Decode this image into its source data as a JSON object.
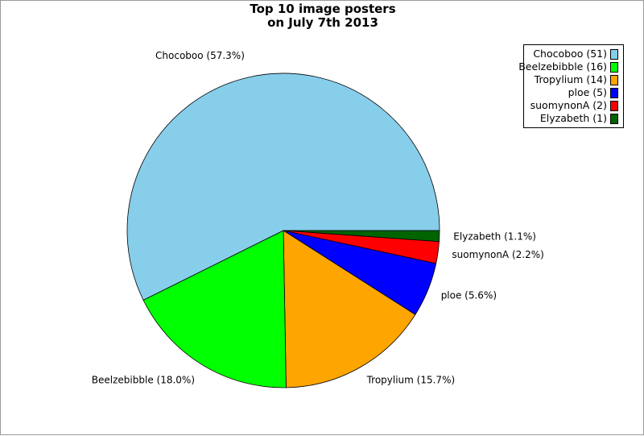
{
  "chart_data": {
    "type": "pie",
    "title": [
      "Top 10 image posters",
      "on July 7th 2013"
    ],
    "legend_position": "top-right",
    "slices": [
      {
        "name": "Chocoboo",
        "value": 51,
        "percent_label": "Chocoboo (57.3%)",
        "legend_label": "Chocoboo (51)",
        "color": "#87ceeb"
      },
      {
        "name": "Beelzebibble",
        "value": 16,
        "percent_label": "Beelzebibble (18.0%)",
        "legend_label": "Beelzebibble (16)",
        "color": "#00ff00"
      },
      {
        "name": "Tropylium",
        "value": 14,
        "percent_label": "Tropylium (15.7%)",
        "legend_label": "Tropylium (14)",
        "color": "#ffa500"
      },
      {
        "name": "ploe",
        "value": 5,
        "percent_label": "ploe (5.6%)",
        "legend_label": "ploe (5)",
        "color": "#0000ff"
      },
      {
        "name": "suomynonA",
        "value": 2,
        "percent_label": "suomynonA (2.2%)",
        "legend_label": "suomynonA (2)",
        "color": "#ff0000"
      },
      {
        "name": "Elyzabeth",
        "value": 1,
        "percent_label": "Elyzabeth (1.1%)",
        "legend_label": "Elyzabeth (1)",
        "color": "#006400"
      }
    ]
  }
}
